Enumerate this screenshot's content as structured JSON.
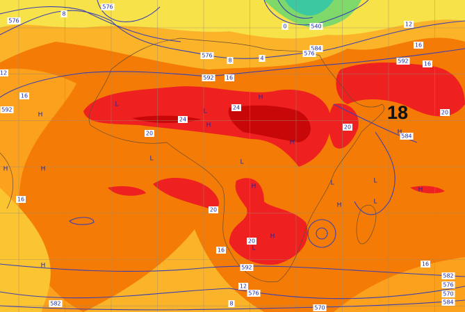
{
  "map": {
    "overlay_label": "18",
    "contour_labels": [
      "576",
      "8",
      "576",
      "0",
      "540",
      "4",
      "576",
      "8",
      "584",
      "576",
      "12",
      "16",
      "592",
      "16",
      "592",
      "16",
      "16",
      "24",
      "24",
      "20",
      "20",
      "584",
      "20",
      "16",
      "20",
      "20",
      "16",
      "592",
      "16",
      "12",
      "576",
      "8",
      "582",
      "570",
      "582",
      "576",
      "570",
      "584",
      "12",
      "592"
    ],
    "pressure_marks": [
      "H",
      "L",
      "H",
      "L",
      "H",
      "H",
      "L",
      "H",
      "H",
      "L",
      "H",
      "L",
      "H",
      "L",
      "H",
      "H",
      "H",
      "L",
      "L",
      "H"
    ]
  }
}
